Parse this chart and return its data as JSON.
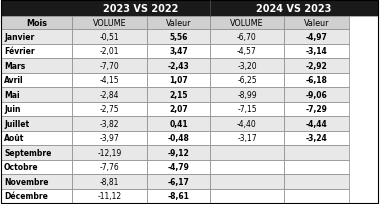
{
  "header1": "2023 VS 2022",
  "header2": "2024 VS 2023",
  "col_headers": [
    "Mois",
    "VOLUME",
    "Valeur",
    "VOLUME",
    "Valeur"
  ],
  "months": [
    "Janvier",
    "Février",
    "Mars",
    "Avril",
    "Mai",
    "Juin",
    "Juillet",
    "Août",
    "Septembre",
    "Octobre",
    "Novembre",
    "Décembre"
  ],
  "vol_2023": [
    "-0,51",
    "-2,01",
    "-7,70",
    "-4,15",
    "-2,84",
    "-2,75",
    "-3,82",
    "-3,97",
    "-12,19",
    "-7,76",
    "-8,81",
    "-11,12"
  ],
  "val_2023": [
    "5,56",
    "3,47",
    "-2,43",
    "1,07",
    "2,15",
    "2,07",
    "0,41",
    "-0,48",
    "-9,12",
    "-4,79",
    "-6,17",
    "-8,61"
  ],
  "vol_2024": [
    "-6,70",
    "-4,57",
    "-3,20",
    "-6,25",
    "-8,99",
    "-7,15",
    "-4,40",
    "-3,17",
    "",
    "",
    "",
    ""
  ],
  "val_2024": [
    "-4,97",
    "-3,14",
    "-2,92",
    "-6,18",
    "-9,06",
    "-7,29",
    "-4,44",
    "-3,24",
    "",
    "",
    "",
    ""
  ],
  "header_bg": "#1a1a1a",
  "header_fg": "#ffffff",
  "subheader_bg": "#d0d0d0",
  "row_bg_light": "#e8e8e8",
  "row_bg_white": "#ffffff",
  "border_color": "#888888"
}
